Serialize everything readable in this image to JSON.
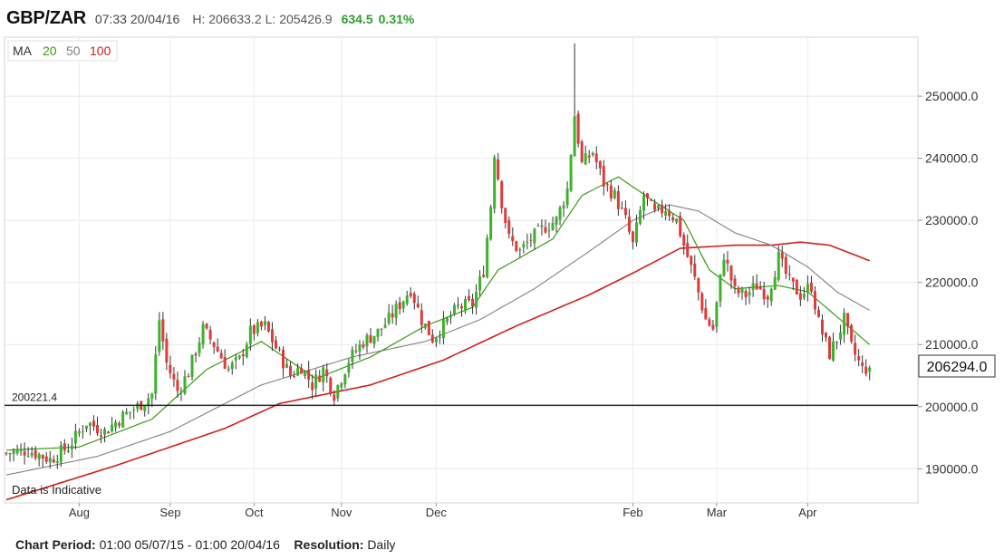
{
  "header": {
    "symbol": "GBP/ZAR",
    "time_date": "07:33 20/04/16",
    "high": "H: 206633.2",
    "low": "L: 205426.9",
    "change": "634.5",
    "change_pct": "0.31%"
  },
  "legend": {
    "label": "MA",
    "ma20": "20",
    "ma50": "50",
    "ma100": "100"
  },
  "colors": {
    "up": "#3cb22c",
    "down": "#e03a3a",
    "ma20": "#3a9a12",
    "ma50": "#808080",
    "ma100": "#cc1f1f",
    "change": "#2ca02c"
  },
  "chart_data": {
    "type": "candlestick",
    "title": "GBP/ZAR",
    "ylim": [
      184500,
      259500
    ],
    "y_ticks": [
      190000,
      200000,
      210000,
      220000,
      230000,
      240000,
      250000
    ],
    "y_tick_labels": [
      "190000.0",
      "200000.0",
      "210000.0",
      "220000.0",
      "230000.0",
      "240000.0",
      "250000.0"
    ],
    "x_months": [
      "Aug",
      "Sep",
      "Oct",
      "Nov",
      "Dec",
      "Feb",
      "Mar",
      "Apr"
    ],
    "current_price_label": "206294.0",
    "current_price": 206294,
    "reference_line": {
      "value": 200221.4,
      "label": "200221.4"
    },
    "watermark": "Data is Indicative",
    "close_anchors": [
      [
        0,
        192500
      ],
      [
        6,
        193000
      ],
      [
        12,
        191500
      ],
      [
        17,
        193500
      ],
      [
        22,
        197500
      ],
      [
        27,
        196000
      ],
      [
        32,
        198500
      ],
      [
        36,
        200000
      ],
      [
        40,
        202000
      ],
      [
        42,
        214000
      ],
      [
        44,
        207000
      ],
      [
        47,
        202500
      ],
      [
        50,
        205500
      ],
      [
        54,
        212500
      ],
      [
        57,
        210000
      ],
      [
        61,
        206000
      ],
      [
        64,
        207500
      ],
      [
        67,
        212000
      ],
      [
        71,
        213000
      ],
      [
        74,
        209500
      ],
      [
        78,
        205000
      ],
      [
        81,
        206500
      ],
      [
        84,
        203500
      ],
      [
        87,
        206000
      ],
      [
        90,
        202000
      ],
      [
        94,
        207500
      ],
      [
        98,
        210500
      ],
      [
        102,
        212000
      ],
      [
        105,
        214000
      ],
      [
        108,
        216500
      ],
      [
        111,
        219000
      ],
      [
        114,
        214000
      ],
      [
        117,
        211000
      ],
      [
        120,
        213000
      ],
      [
        124,
        216000
      ],
      [
        128,
        216500
      ],
      [
        131,
        222000
      ],
      [
        133,
        232500
      ],
      [
        134,
        241000
      ],
      [
        136,
        233000
      ],
      [
        138,
        227000
      ],
      [
        141,
        225000
      ],
      [
        144,
        227000
      ],
      [
        148,
        229000
      ],
      [
        151,
        230000
      ],
      [
        154,
        235000
      ],
      [
        156,
        247000
      ],
      [
        158,
        239000
      ],
      [
        161,
        241000
      ],
      [
        164,
        236000
      ],
      [
        167,
        234000
      ],
      [
        170,
        230000
      ],
      [
        172,
        226000
      ],
      [
        175,
        234000
      ],
      [
        178,
        231000
      ],
      [
        181,
        232000
      ],
      [
        184,
        230000
      ],
      [
        186,
        226000
      ],
      [
        189,
        220500
      ],
      [
        192,
        214000
      ],
      [
        194,
        212500
      ],
      [
        197,
        224500
      ],
      [
        200,
        218500
      ],
      [
        203,
        218000
      ],
      [
        206,
        219500
      ],
      [
        209,
        218000
      ],
      [
        212,
        224000
      ],
      [
        215,
        220000
      ],
      [
        218,
        218000
      ],
      [
        221,
        219500
      ],
      [
        223,
        213500
      ],
      [
        226,
        208500
      ],
      [
        228,
        211000
      ],
      [
        230,
        214000
      ],
      [
        232,
        209500
      ],
      [
        235,
        206000
      ],
      [
        237,
        206294
      ]
    ],
    "ma_anchors": {
      "ma20": [
        [
          0,
          193000
        ],
        [
          20,
          193500
        ],
        [
          40,
          198000
        ],
        [
          55,
          206000
        ],
        [
          70,
          210500
        ],
        [
          85,
          204500
        ],
        [
          100,
          208000
        ],
        [
          115,
          213000
        ],
        [
          128,
          216000
        ],
        [
          135,
          222000
        ],
        [
          150,
          227000
        ],
        [
          158,
          234000
        ],
        [
          168,
          237000
        ],
        [
          178,
          233000
        ],
        [
          186,
          230000
        ],
        [
          193,
          222000
        ],
        [
          200,
          219000
        ],
        [
          212,
          219500
        ],
        [
          220,
          218500
        ],
        [
          228,
          214500
        ],
        [
          237,
          210000
        ]
      ],
      "ma50": [
        [
          0,
          189000
        ],
        [
          25,
          192000
        ],
        [
          45,
          196000
        ],
        [
          70,
          203500
        ],
        [
          95,
          208000
        ],
        [
          115,
          210500
        ],
        [
          130,
          214000
        ],
        [
          145,
          219000
        ],
        [
          160,
          225000
        ],
        [
          172,
          230000
        ],
        [
          182,
          232500
        ],
        [
          190,
          231500
        ],
        [
          200,
          228000
        ],
        [
          210,
          226000
        ],
        [
          220,
          222500
        ],
        [
          228,
          218500
        ],
        [
          237,
          215500
        ]
      ],
      "ma100": [
        [
          0,
          185000
        ],
        [
          30,
          190500
        ],
        [
          60,
          196500
        ],
        [
          75,
          200500
        ],
        [
          100,
          203500
        ],
        [
          120,
          207500
        ],
        [
          140,
          213000
        ],
        [
          160,
          218000
        ],
        [
          172,
          221500
        ],
        [
          185,
          225500
        ],
        [
          200,
          226000
        ],
        [
          210,
          226000
        ],
        [
          218,
          226500
        ],
        [
          226,
          226000
        ],
        [
          237,
          223500
        ]
      ]
    }
  },
  "footer": {
    "period_label": "Chart Period:",
    "period_value": "01:00 05/07/15 - 01:00 20/04/16",
    "resolution_label": "Resolution:",
    "resolution_value": "Daily"
  }
}
